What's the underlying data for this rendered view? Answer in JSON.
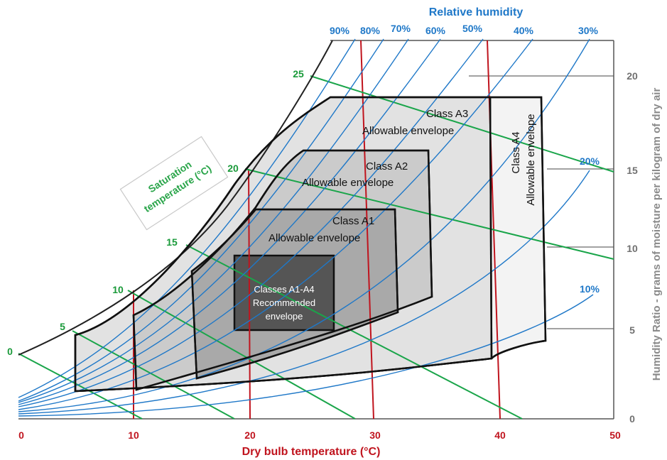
{
  "relative_humidity": {
    "title": "Relative humidity",
    "labels": [
      "90%",
      "80%",
      "70%",
      "60%",
      "50%",
      "40%",
      "30%",
      "20%",
      "10%"
    ],
    "color": "#1f78c8"
  },
  "dry_bulb_axis": {
    "title": "Dry bulb temperature (°C)",
    "ticks": [
      "0",
      "10",
      "20",
      "30",
      "40",
      "50"
    ],
    "color": "#c0141e"
  },
  "humidity_ratio_axis": {
    "title": "Humidity Ratio - grams of moisture per kilogram of dry air",
    "ticks": [
      "0",
      "5",
      "10",
      "15",
      "20"
    ],
    "color": "#707070"
  },
  "saturation": {
    "title_line1": "Saturation",
    "title_line2": "temperature (°C)",
    "ticks": [
      "0",
      "5",
      "10",
      "15",
      "20",
      "25"
    ],
    "color": "#1a9a3a"
  },
  "envelopes": {
    "a4": {
      "title": "Class A4",
      "subtitle": "Allowable envelope",
      "fill": "#f3f3f3"
    },
    "a3": {
      "title": "Class A3",
      "subtitle": "Allowable envelope",
      "fill": "#e2e2e2"
    },
    "a2": {
      "title": "Class A2",
      "subtitle": "Allowable envelope",
      "fill": "#cbcbcb"
    },
    "a1": {
      "title": "Class A1",
      "subtitle": "Allowable envelope",
      "fill": "#a9a9a9"
    },
    "recommended": {
      "line1": "Classes A1-A4",
      "line2": "Recommended",
      "line3": "envelope",
      "fill": "#555555"
    }
  }
}
